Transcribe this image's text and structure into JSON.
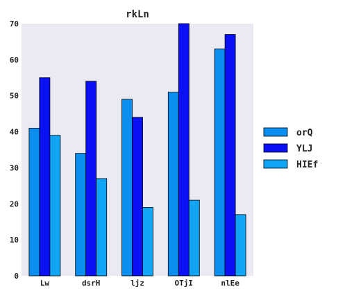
{
  "chart_data": {
    "type": "bar",
    "title": "rkLn",
    "xlabel": "",
    "ylabel": "",
    "categories": [
      "Lw",
      "dsrH",
      "ljz",
      "OTjI",
      "nlEe"
    ],
    "series": [
      {
        "name": "orQ",
        "values": [
          41,
          34,
          49,
          51,
          63
        ],
        "color": "#0a8ef0"
      },
      {
        "name": "YLJ",
        "values": [
          55,
          54,
          44,
          70,
          67
        ],
        "color": "#0a12f5"
      },
      {
        "name": "HIEf",
        "values": [
          39,
          27,
          19,
          21,
          17
        ],
        "color": "#12a4f5"
      }
    ],
    "ylim": [
      0,
      70
    ],
    "yticks": [
      0,
      10,
      20,
      30,
      40,
      50,
      60,
      70
    ],
    "plot_background": "#eaeaf2",
    "legend_position": "right",
    "grid": false
  }
}
